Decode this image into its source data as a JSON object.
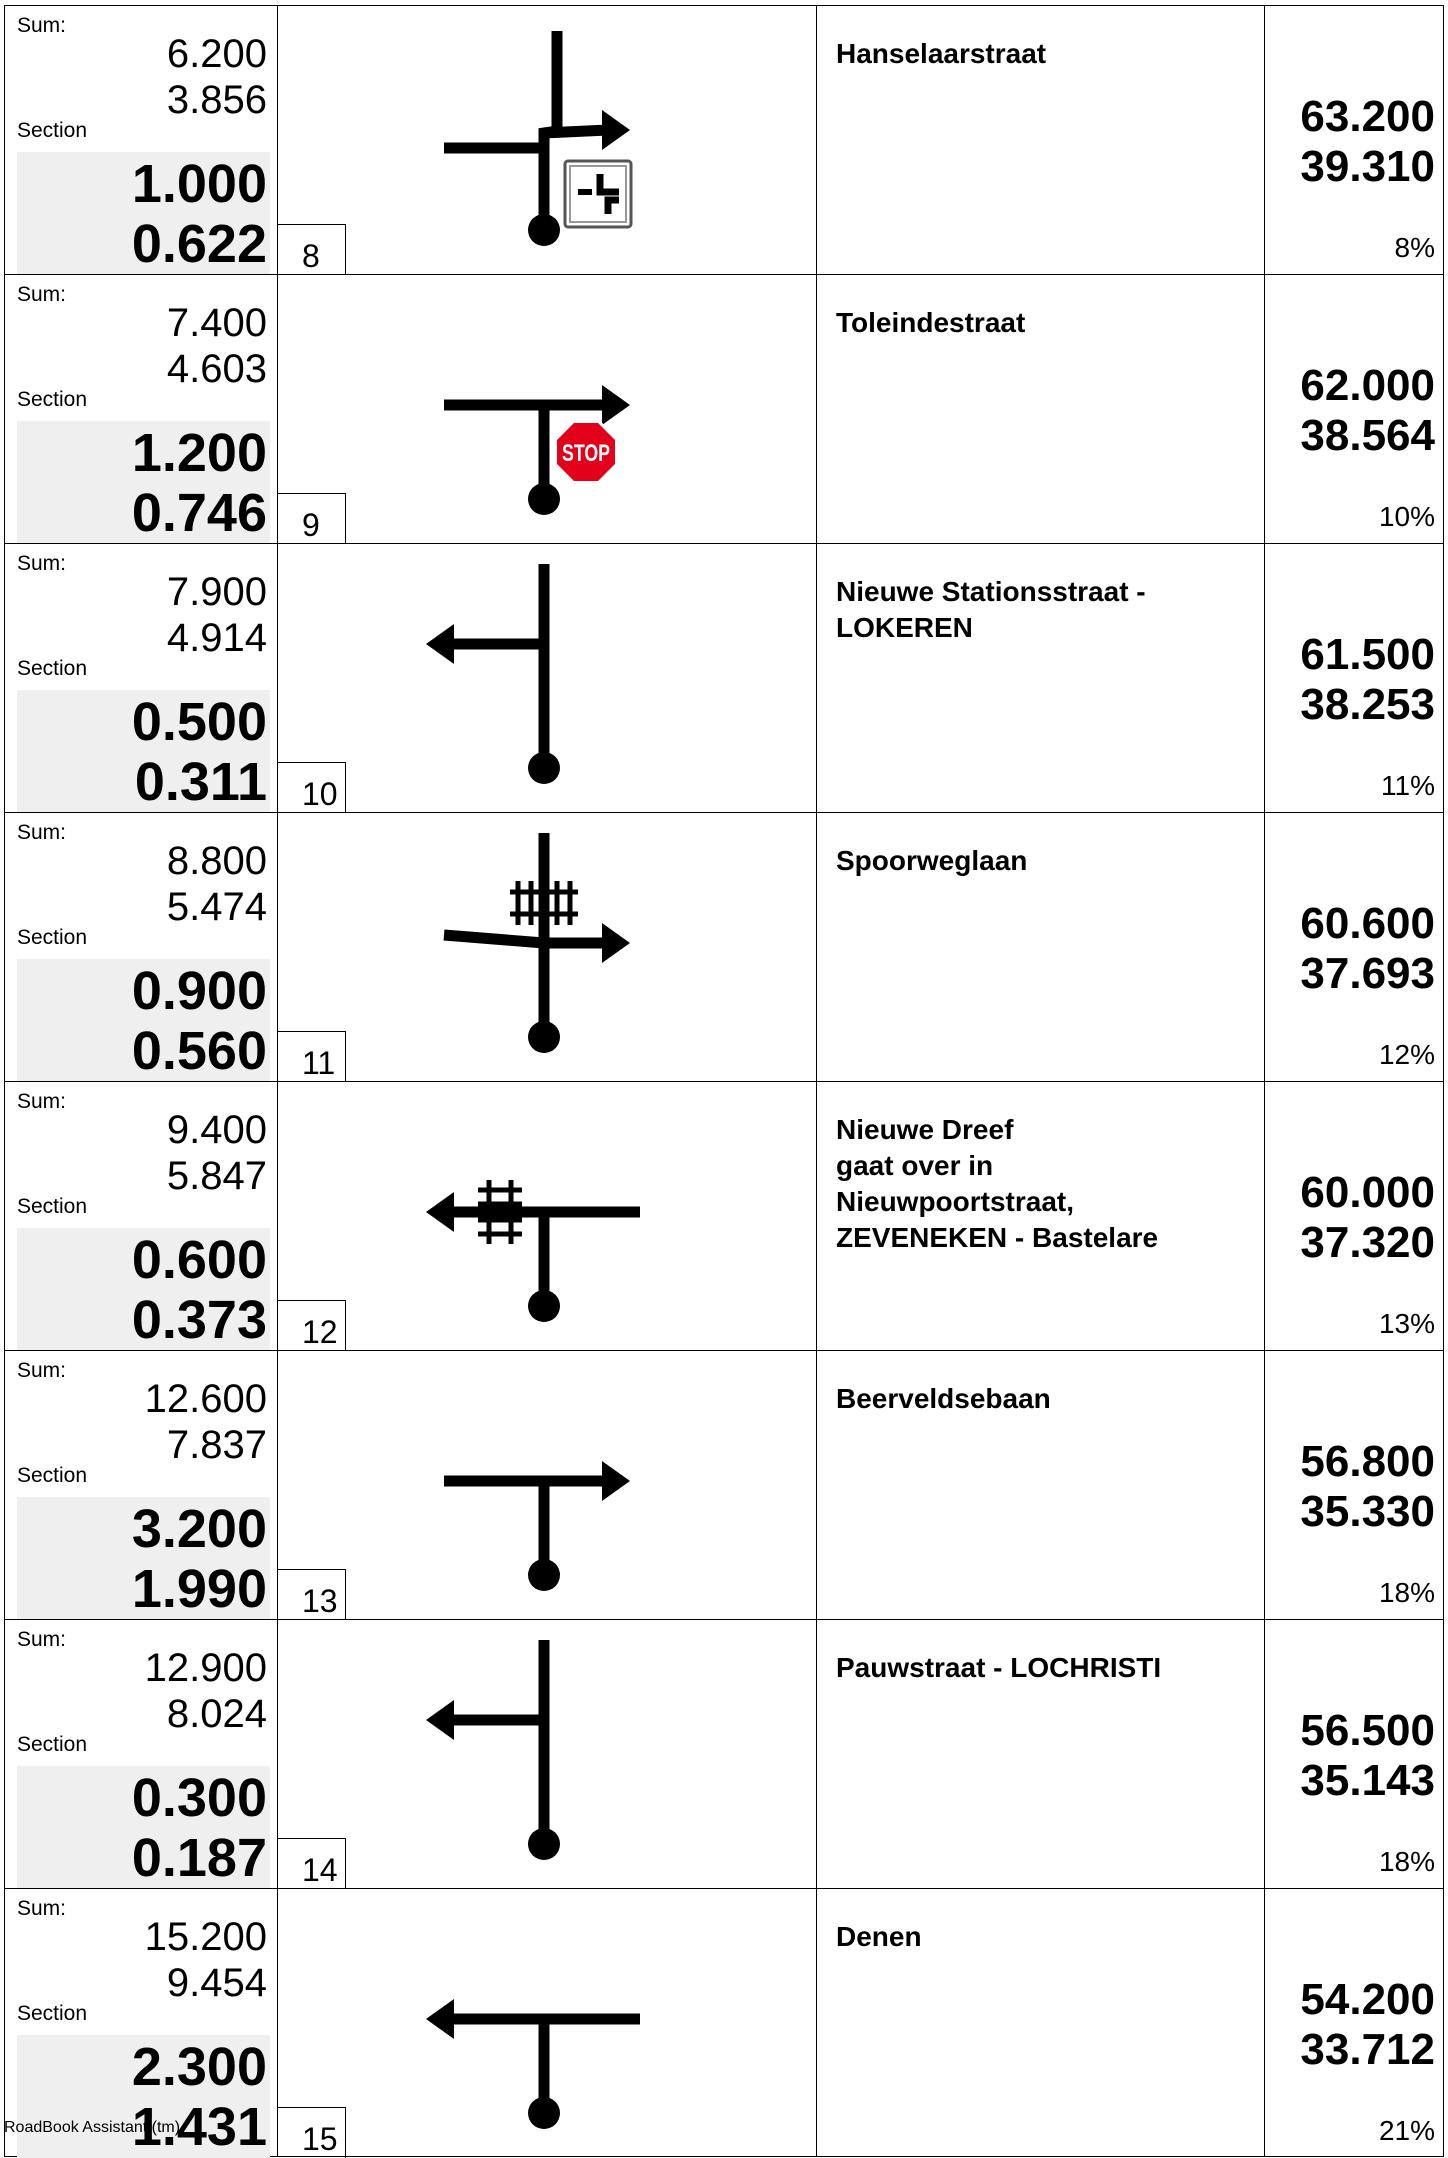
{
  "labels": {
    "sum": "Sum:",
    "section": "Section"
  },
  "footer": "RoadBook Assistant (tm)",
  "colors": {
    "stop_sign": "#e3001b",
    "section_background": "#efefef"
  },
  "rows": [
    {
      "step": "8",
      "sum_km": "6.200",
      "sum_mi": "3.856",
      "section_km": "1.000",
      "section_mi": "0.622",
      "tulip": {
        "type": "straight-jog-right",
        "icon": "priority-road-sign-icon"
      },
      "description": "Hanselaarstraat",
      "remaining_km": "63.200",
      "remaining_mi": "39.310",
      "progress": "8%"
    },
    {
      "step": "9",
      "sum_km": "7.400",
      "sum_mi": "4.603",
      "section_km": "1.200",
      "section_mi": "0.746",
      "tulip": {
        "type": "t-right",
        "icon": "stop-sign-icon",
        "icon_text": "STOP"
      },
      "description": "Toleindestraat",
      "remaining_km": "62.000",
      "remaining_mi": "38.564",
      "progress": "10%"
    },
    {
      "step": "10",
      "sum_km": "7.900",
      "sum_mi": "4.914",
      "section_km": "0.500",
      "section_mi": "0.311",
      "tulip": {
        "type": "branch-left"
      },
      "description": "Nieuwe Stationsstraat -\nLOKEREN",
      "remaining_km": "61.500",
      "remaining_mi": "38.253",
      "progress": "11%"
    },
    {
      "step": "11",
      "sum_km": "8.800",
      "sum_mi": "5.474",
      "section_km": "0.900",
      "section_mi": "0.560",
      "tulip": {
        "type": "cross-right",
        "icon": "railway-crossing-icon"
      },
      "description": "Spoorweglaan",
      "remaining_km": "60.600",
      "remaining_mi": "37.693",
      "progress": "12%"
    },
    {
      "step": "12",
      "sum_km": "9.400",
      "sum_mi": "5.847",
      "section_km": "0.600",
      "section_mi": "0.373",
      "tulip": {
        "type": "t-left",
        "icon": "railway-crossing-icon"
      },
      "description": "Nieuwe Dreef\ngaat over in\nNieuwpoortstraat,\nZEVENEKEN - Bastelare",
      "remaining_km": "60.000",
      "remaining_mi": "37.320",
      "progress": "13%"
    },
    {
      "step": "13",
      "sum_km": "12.600",
      "sum_mi": "7.837",
      "section_km": "3.200",
      "section_mi": "1.990",
      "tulip": {
        "type": "t-right"
      },
      "description": "Beerveldsebaan",
      "remaining_km": "56.800",
      "remaining_mi": "35.330",
      "progress": "18%"
    },
    {
      "step": "14",
      "sum_km": "12.900",
      "sum_mi": "8.024",
      "section_km": "0.300",
      "section_mi": "0.187",
      "tulip": {
        "type": "branch-left"
      },
      "description": "Pauwstraat - LOCHRISTI",
      "remaining_km": "56.500",
      "remaining_mi": "35.143",
      "progress": "18%"
    },
    {
      "step": "15",
      "sum_km": "15.200",
      "sum_mi": "9.454",
      "section_km": "2.300",
      "section_mi": "1.431",
      "tulip": {
        "type": "t-left"
      },
      "description": "Denen",
      "remaining_km": "54.200",
      "remaining_mi": "33.712",
      "progress": "21%"
    }
  ]
}
